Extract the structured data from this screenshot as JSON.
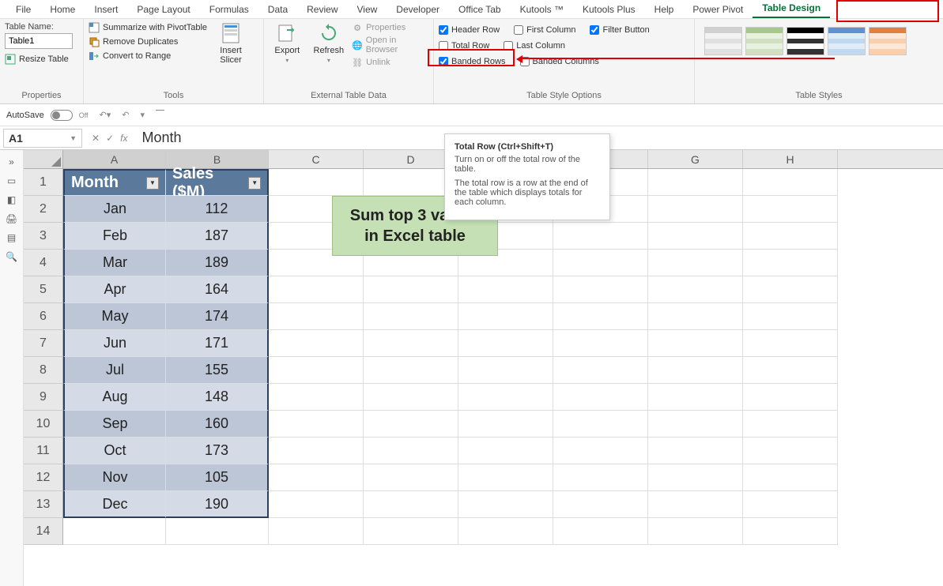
{
  "ribbon": {
    "tabs": [
      "File",
      "Home",
      "Insert",
      "Page Layout",
      "Formulas",
      "Data",
      "Review",
      "View",
      "Developer",
      "Office Tab",
      "Kutools ™",
      "Kutools Plus",
      "Help",
      "Power Pivot",
      "Table Design"
    ],
    "active_tab": "Table Design",
    "properties": {
      "label": "Table Name:",
      "table_name": "Table1",
      "resize": "Resize Table",
      "group": "Properties"
    },
    "tools": {
      "summarize": "Summarize with PivotTable",
      "remove_dupes": "Remove Duplicates",
      "convert": "Convert to Range",
      "slicer": "Insert\nSlicer",
      "group": "Tools"
    },
    "external": {
      "export": "Export",
      "refresh": "Refresh",
      "props": "Properties",
      "browser": "Open in Browser",
      "unlink": "Unlink",
      "group": "External Table Data"
    },
    "options": {
      "header_row": "Header Row",
      "header_row_chk": true,
      "total_row": "Total Row",
      "total_row_chk": false,
      "banded_rows": "Banded Rows",
      "banded_rows_chk": true,
      "first_col": "First Column",
      "first_col_chk": false,
      "last_col": "Last Column",
      "last_col_chk": false,
      "banded_cols": "Banded Columns",
      "banded_cols_chk": false,
      "filter_btn": "Filter Button",
      "filter_btn_chk": true,
      "group": "Table Style Options"
    },
    "styles": {
      "group": "Table Styles"
    }
  },
  "autosave": {
    "label": "AutoSave",
    "state": "Off"
  },
  "formula_bar": {
    "cell_ref": "A1",
    "value": "Month"
  },
  "columns": [
    "A",
    "B",
    "C",
    "D",
    "E",
    "F",
    "G",
    "H"
  ],
  "col_widths": {
    "A": 130,
    "B": 130,
    "C": 120,
    "D": 120,
    "E": 120,
    "F": 120,
    "G": 120,
    "H": 120
  },
  "table": {
    "headers": [
      "Month",
      "Sales ($M)"
    ],
    "rows": [
      [
        "Jan",
        "112"
      ],
      [
        "Feb",
        "187"
      ],
      [
        "Mar",
        "189"
      ],
      [
        "Apr",
        "164"
      ],
      [
        "May",
        "174"
      ],
      [
        "Jun",
        "171"
      ],
      [
        "Jul",
        "155"
      ],
      [
        "Aug",
        "148"
      ],
      [
        "Sep",
        "160"
      ],
      [
        "Oct",
        "173"
      ],
      [
        "Nov",
        "105"
      ],
      [
        "Dec",
        "190"
      ]
    ]
  },
  "note": {
    "line1": "Sum top 3 values",
    "line2": "in Excel table"
  },
  "tooltip": {
    "title": "Total Row (Ctrl+Shift+T)",
    "p1": "Turn on or off the total row of the table.",
    "p2": "The total row is a row at the end of the table which displays totals for each column."
  },
  "style_thumbs": [
    {
      "stripes": [
        "#f2f2f2",
        "#e0e0e0"
      ],
      "header": "#d0d0d0"
    },
    {
      "stripes": [
        "#e8f0e0",
        "#d0e0c0"
      ],
      "header": "#a8c888"
    },
    {
      "stripes": [
        "#ffffff",
        "#333333"
      ],
      "header": "#000000"
    },
    {
      "stripes": [
        "#e0ecf8",
        "#c0d8f0"
      ],
      "header": "#6090d0"
    },
    {
      "stripes": [
        "#fde8d8",
        "#f8d0b0"
      ],
      "header": "#e08040"
    }
  ]
}
